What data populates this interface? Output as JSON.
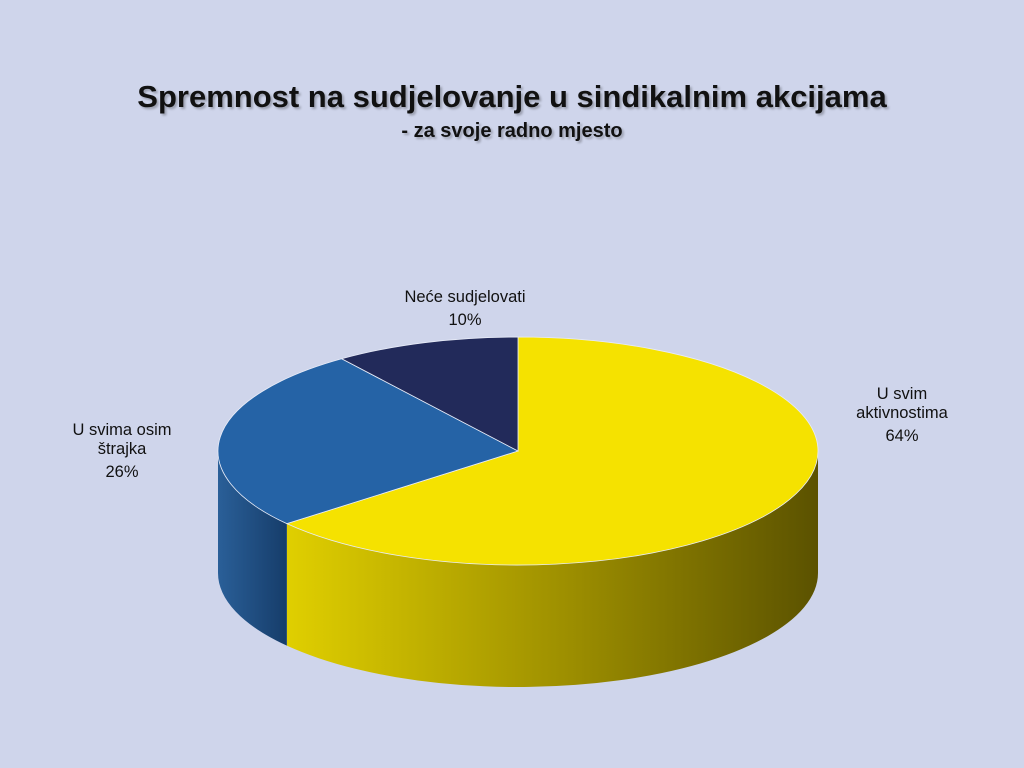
{
  "slide": {
    "title": "Spremnost na sudjelovanje u sindikalnim akcijama",
    "subtitle": "- za svoje radno mjesto",
    "background": "#cfd5eb"
  },
  "chart_data": {
    "type": "pie",
    "style": "3d",
    "title": "Spremnost na sudjelovanje u sindikalnim akcijama",
    "subtitle": "- za svoje radno mjesto",
    "legend": "none",
    "slices": [
      {
        "label": "U svim aktivnostima",
        "value": 64,
        "value_label": "64%",
        "color": "#f5e200"
      },
      {
        "label": "U svima osim štrajka",
        "value": 26,
        "value_label": "26%",
        "color": "#2563a6"
      },
      {
        "label": "Neće sudjelovati",
        "value": 10,
        "value_label": "10%",
        "color": "#222a5a"
      }
    ]
  }
}
